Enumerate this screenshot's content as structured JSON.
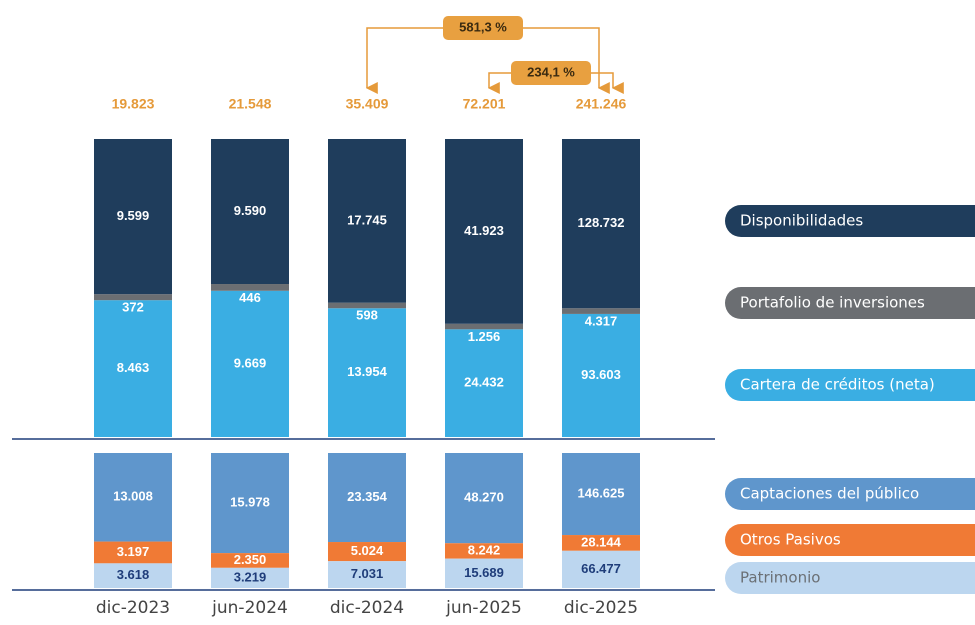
{
  "chart_data": {
    "type": "stacked_bar_balance",
    "categories": [
      "dic-2023",
      "jun-2024",
      "dic-2024",
      "jun-2025",
      "dic-2025"
    ],
    "totals": [
      19823,
      21548,
      35409,
      72201,
      241246
    ],
    "total_labels": [
      "19.823",
      "21.548",
      "35.409",
      "72.201",
      "241.246"
    ],
    "assets_series": [
      {
        "name": "Disponibilidades",
        "color": "#1f3d5c",
        "label_color": "#ffffff",
        "legend_text_color": "#ffffff",
        "values": [
          9599,
          9590,
          17745,
          41923,
          128732
        ],
        "value_labels": [
          "9.599",
          "9.590",
          "17.745",
          "41.923",
          "128.732"
        ]
      },
      {
        "name": "Portafolio de inversiones",
        "color": "#6b6e72",
        "label_color": "#ffffff",
        "legend_text_color": "#ffffff",
        "values": [
          372,
          446,
          598,
          1256,
          4317
        ],
        "value_labels": [
          "372",
          "446",
          "598",
          "1.256",
          "4.317"
        ]
      },
      {
        "name": "Cartera de créditos (neta)",
        "color": "#3aaee3",
        "label_color": "#ffffff",
        "legend_text_color": "#ffffff",
        "values": [
          8463,
          9669,
          13954,
          24432,
          93603
        ],
        "value_labels": [
          "8.463",
          "9.669",
          "13.954",
          "24.432",
          "93.603"
        ]
      }
    ],
    "liabilities_series": [
      {
        "name": "Captaciones del público",
        "color": "#5f96cc",
        "label_color": "#ffffff",
        "legend_text_color": "#ffffff",
        "values": [
          13008,
          15978,
          23354,
          48270,
          146625
        ],
        "value_labels": [
          "13.008",
          "15.978",
          "23.354",
          "48.270",
          "146.625"
        ]
      },
      {
        "name": "Otros Pasivos",
        "color": "#f07a35",
        "label_color": "#ffffff",
        "legend_text_color": "#ffffff",
        "values": [
          3197,
          2350,
          5024,
          8242,
          28144
        ],
        "value_labels": [
          "3.197",
          "2.350",
          "5.024",
          "8.242",
          "28.144"
        ]
      },
      {
        "name": "Patrimonio",
        "color": "#bcd6ef",
        "label_color": "#1f3d7a",
        "legend_text_color": "#6b7075",
        "values": [
          3618,
          3219,
          7031,
          15689,
          66477
        ],
        "value_labels": [
          "3.618",
          "3.219",
          "7.031",
          "15.689",
          "66.477"
        ]
      }
    ],
    "annotations": [
      {
        "value": 581.3,
        "label": "581,3 %",
        "from": "dic-2024",
        "to": "dic-2025"
      },
      {
        "value": 234.1,
        "label": "234,1 %",
        "from": "jun-2025",
        "to": "dic-2025"
      }
    ]
  }
}
